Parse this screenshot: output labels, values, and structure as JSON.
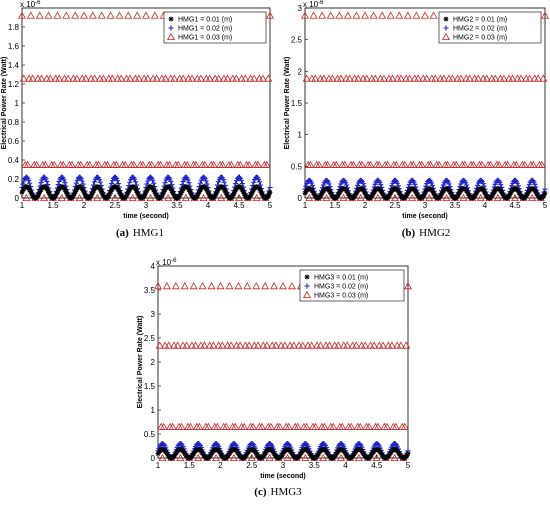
{
  "chart_data": [
    {
      "type": "scatter",
      "xlabel": "time (second)",
      "ylabel": "Electrical Power Rate (Watt)",
      "y_multiplier": "x 10",
      "y_exponent": "-6",
      "xlim": [
        1,
        5
      ],
      "ylim": [
        0,
        2
      ],
      "x_ticks": [
        "1",
        "1.5",
        "2",
        "2.5",
        "3",
        "3.5",
        "4",
        "4.5",
        "5"
      ],
      "y_ticks": [
        "0",
        "0.2",
        "0.4",
        "0.6",
        "0.8",
        "1",
        "1.2",
        "1.4",
        "1.6",
        "1.8"
      ],
      "y_tick_values": [
        0,
        0.2,
        0.4,
        0.6,
        0.8,
        1.0,
        1.2,
        1.4,
        1.6,
        1.8
      ],
      "cycles_per_unit": 3.5,
      "caption": {
        "letter": "(a)",
        "name": "HMG1"
      },
      "legend_position": "top-right",
      "series": [
        {
          "name": "HMG1 = 0.01 (m)",
          "marker": "star",
          "color": "#000000",
          "peak": 0.12
        },
        {
          "name": "HMG1 = 0.02 (m)",
          "marker": "plus",
          "color": "#2222cc",
          "peak": 0.22
        },
        {
          "name": "HMG1 = 0.03 (m)",
          "marker": "triangle",
          "color": "#cc2222",
          "peak": 1.92
        }
      ]
    },
    {
      "type": "scatter",
      "xlabel": "time (second)",
      "ylabel": "Electrical Power Rate (Watt)",
      "y_multiplier": "x 10",
      "y_exponent": "-6",
      "xlim": [
        1,
        5
      ],
      "ylim": [
        0,
        3
      ],
      "x_ticks": [
        "1",
        "1.5",
        "2",
        "2.5",
        "3",
        "3.5",
        "4",
        "4.5",
        "5"
      ],
      "y_ticks": [
        "0",
        "0.5",
        "1",
        "1.5",
        "2",
        "2.5",
        "3"
      ],
      "y_tick_values": [
        0,
        0.5,
        1.0,
        1.5,
        2.0,
        2.5,
        3.0
      ],
      "cycles_per_unit": 3.5,
      "caption": {
        "letter": "(b)",
        "name": "HMG2"
      },
      "legend_position": "top-right",
      "series": [
        {
          "name": "HMG2 = 0.01 (m)",
          "marker": "star",
          "color": "#000000",
          "peak": 0.15
        },
        {
          "name": "HMG2 = 0.02 (m)",
          "marker": "plus",
          "color": "#2222cc",
          "peak": 0.28
        },
        {
          "name": "HMG2 = 0.03 (m)",
          "marker": "triangle",
          "color": "#cc2222",
          "peak": 2.88
        }
      ]
    },
    {
      "type": "scatter",
      "xlabel": "time (second)",
      "ylabel": "Electrical Power Rate (Watt)",
      "y_multiplier": "x 10",
      "y_exponent": "-6",
      "xlim": [
        1,
        5
      ],
      "ylim": [
        0,
        4
      ],
      "x_ticks": [
        "1",
        "1.5",
        "2",
        "2.5",
        "3",
        "3.5",
        "4",
        "4.5",
        "5"
      ],
      "y_ticks": [
        "0",
        "0.5",
        "1",
        "1.5",
        "2",
        "2.5",
        "3",
        "3.5",
        "4"
      ],
      "y_tick_values": [
        0,
        0.5,
        1.0,
        1.5,
        2.0,
        2.5,
        3.0,
        3.5,
        4.0
      ],
      "cycles_per_unit": 3.5,
      "caption": {
        "letter": "(c)",
        "name": "HMG3"
      },
      "legend_position": "top-right",
      "series": [
        {
          "name": "HMG3  = 0.01 (m)",
          "marker": "star",
          "color": "#000000",
          "peak": 0.18
        },
        {
          "name": "HMG3  = 0.02 (m)",
          "marker": "plus",
          "color": "#2222cc",
          "peak": 0.3
        },
        {
          "name": "HMG3  = 0.03 (m)",
          "marker": "triangle",
          "color": "#cc2222",
          "peak": 3.58
        }
      ]
    }
  ]
}
